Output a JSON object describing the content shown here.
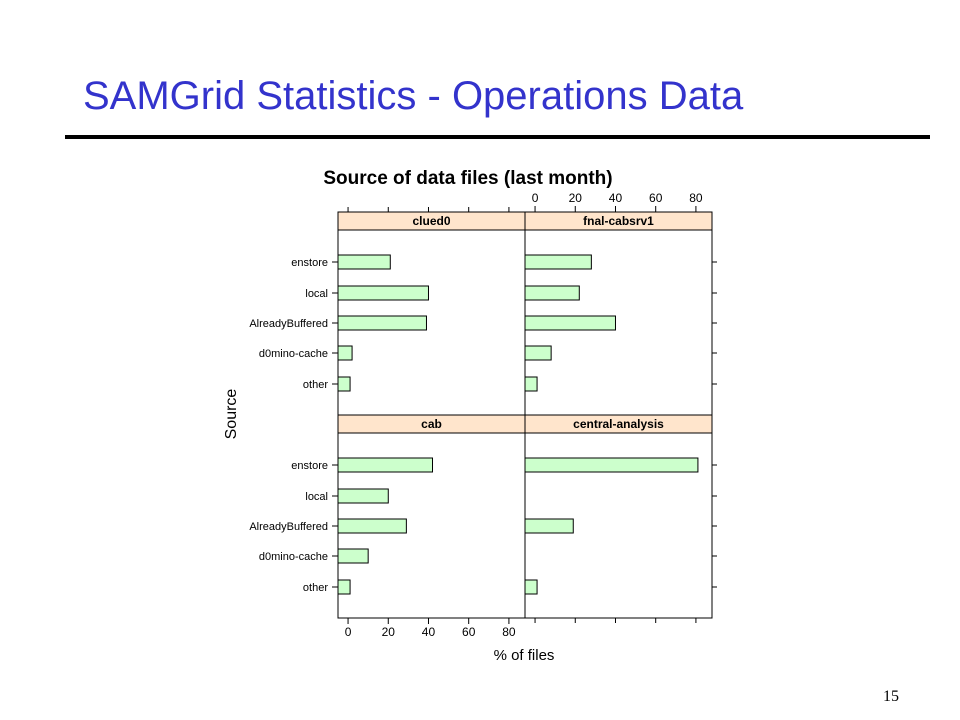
{
  "slide": {
    "title": "SAMGrid Statistics - Operations Data",
    "page_number": "15"
  },
  "chart_data": {
    "type": "bar",
    "orientation": "horizontal",
    "title": "Source of data files (last month)",
    "xlabel": "% of files",
    "ylabel": "Source",
    "xlim": [
      -5,
      88
    ],
    "x_ticks": [
      "0",
      "20",
      "40",
      "60",
      "80"
    ],
    "categories": [
      "enstore",
      "local",
      "AlreadyBuffered",
      "d0mino-cache",
      "other"
    ],
    "colors": {
      "bar_fill": "#ccffcc",
      "strip_fill": "#ffe5cc",
      "bar_stroke": "#000000"
    },
    "panels": [
      {
        "name": "clued0",
        "values": [
          21,
          40,
          39,
          2,
          1
        ]
      },
      {
        "name": "fnal-cabsrv1",
        "values": [
          28,
          22,
          40,
          8,
          1
        ]
      },
      {
        "name": "cab",
        "values": [
          42,
          20,
          29,
          10,
          1
        ]
      },
      {
        "name": "central-analysis",
        "values": [
          81,
          0,
          19,
          0,
          1
        ]
      }
    ]
  }
}
